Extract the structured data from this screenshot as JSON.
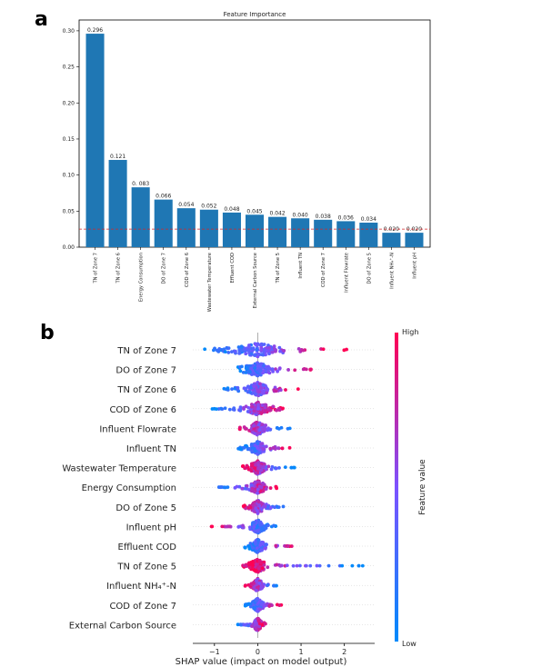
{
  "panels": {
    "a": {
      "letter": "a"
    },
    "b": {
      "letter": "b"
    }
  },
  "chart_data": [
    {
      "type": "bar",
      "title": "Feature Importance",
      "categories": [
        "TN of Zone 7",
        "TN of Zone 6",
        "Energy Consumption",
        "DO of Zone 7",
        "COD of Zone 6",
        "Wastewater Temperature",
        "Effluent COD",
        "External Carbon Source",
        "TN of Zone 5",
        "Influent TN",
        "COD of Zone 7",
        "Influent Flowrate",
        "DO of Zone 5",
        "Influent  NH₄⁺-N",
        "Influent pH"
      ],
      "values": [
        0.296,
        0.121,
        0.083,
        0.066,
        0.054,
        0.052,
        0.048,
        0.045,
        0.042,
        0.04,
        0.038,
        0.036,
        0.034,
        0.02,
        0.02
      ],
      "value_labels": [
        "0.296",
        "0.121",
        "0. 083",
        "0.066",
        "0.054",
        "0.052",
        "0.048",
        "0.045",
        "0.042",
        "0.040",
        "0.038",
        "0.036",
        "0.034",
        "0.020",
        "0.020"
      ],
      "ylim": [
        0,
        0.3
      ],
      "yticks": [
        "0.00",
        "0.05",
        "0.10",
        "0.15",
        "0.20",
        "0.25",
        "0.30"
      ],
      "threshold_line": {
        "value": 0.025,
        "style": "dashed",
        "color": "#d62728"
      },
      "bar_color": "#1f77b4",
      "grid": false
    },
    {
      "type": "scatter",
      "subtype": "shap-beeswarm",
      "xlabel": "SHAP value (impact on model output)",
      "xticks": [
        "−1",
        "0",
        "1",
        "2"
      ],
      "xlim": [
        -1.5,
        2.7
      ],
      "features": [
        "TN of Zone 7",
        "DO of Zone 7",
        "TN of Zone 6",
        "COD of Zone 6",
        "Influent Flowrate",
        "Influent TN",
        "Wastewater Temperature",
        "Energy Consumption",
        "DO of Zone 5",
        "Influent pH",
        "Effluent COD",
        "TN of Zone 5",
        "Influent  NH₄⁺-N",
        "COD of Zone 7",
        "External Carbon Source"
      ],
      "distributions": [
        {
          "min": -1.3,
          "max": 2.1,
          "low_side": "negative",
          "spread": 0.9
        },
        {
          "min": -0.6,
          "max": 1.3,
          "low_side": "negative",
          "spread": 0.55
        },
        {
          "min": -0.8,
          "max": 0.95,
          "low_side": "negative",
          "spread": 0.45
        },
        {
          "min": -1.05,
          "max": 0.6,
          "low_side": "negative",
          "spread": 0.4
        },
        {
          "min": -0.45,
          "max": 0.75,
          "low_side": "positive",
          "spread": 0.3
        },
        {
          "min": -0.45,
          "max": 0.75,
          "low_side": "negative",
          "spread": 0.3
        },
        {
          "min": -0.35,
          "max": 0.85,
          "low_side": "positive",
          "spread": 0.3
        },
        {
          "min": -0.95,
          "max": 0.45,
          "low_side": "negative",
          "spread": 0.3
        },
        {
          "min": -0.35,
          "max": 0.65,
          "low_side": "positive",
          "spread": 0.25
        },
        {
          "min": -1.1,
          "max": 0.45,
          "low_side": "positive",
          "spread": 0.25
        },
        {
          "min": -0.3,
          "max": 0.8,
          "low_side": "negative",
          "spread": 0.25
        },
        {
          "min": -0.35,
          "max": 2.45,
          "low_side": "positive",
          "spread": 0.3
        },
        {
          "min": -0.3,
          "max": 0.55,
          "low_side": "positive",
          "spread": 0.2
        },
        {
          "min": -0.3,
          "max": 0.55,
          "low_side": "negative",
          "spread": 0.2
        },
        {
          "min": -0.5,
          "max": 0.2,
          "low_side": "negative",
          "spread": 0.15
        }
      ],
      "colorbar": {
        "label": "Feature value",
        "high": "High",
        "low": "Low",
        "high_color": "#ff0052",
        "low_color": "#008afb"
      },
      "zero_line": true
    }
  ]
}
